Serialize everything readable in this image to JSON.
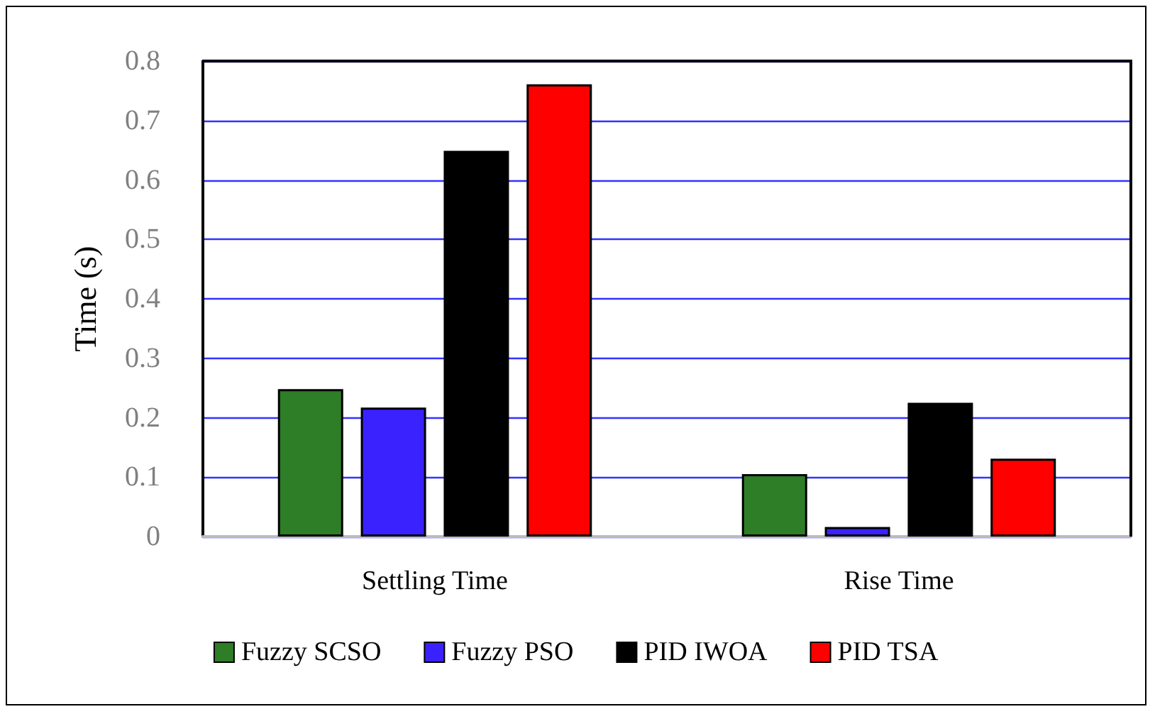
{
  "chart_data": {
    "type": "bar",
    "ylabel": "Time (s)",
    "categories": [
      "Settling Time",
      "Rise Time"
    ],
    "series": [
      {
        "name": "Fuzzy SCSO",
        "color": "#2e7d27",
        "values": [
          0.248,
          0.105
        ]
      },
      {
        "name": "Fuzzy PSO",
        "color": "#3a22ff",
        "values": [
          0.217,
          0.016
        ]
      },
      {
        "name": "PID IWOA",
        "color": "#000000",
        "values": [
          0.649,
          0.225
        ]
      },
      {
        "name": "PID TSA",
        "color": "#ff0000",
        "values": [
          0.761,
          0.131
        ]
      }
    ],
    "ylim": [
      0,
      0.8
    ],
    "yticks": [
      0,
      0.1,
      0.2,
      0.3,
      0.4,
      0.5,
      0.6,
      0.7,
      0.8
    ],
    "grid": "y",
    "legend": "bottom"
  }
}
